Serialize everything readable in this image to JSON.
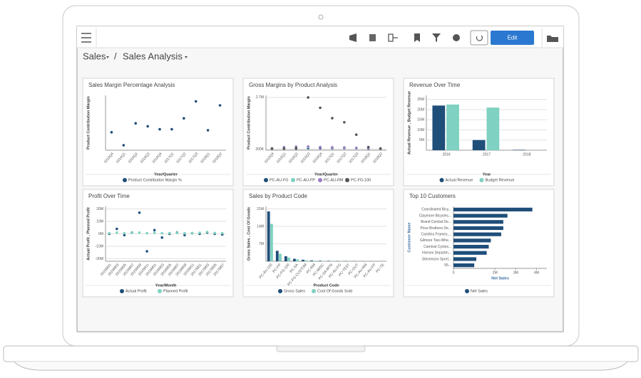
{
  "toolbar": {
    "edit": "Edit"
  },
  "breadcrumb": {
    "items": [
      "Sales",
      "Sales Analysis"
    ],
    "separator": "/"
  },
  "panels": [
    {
      "title": "Sales Margin Percentage Analysis",
      "chart": {
        "type": "line",
        "y_label": "Product Contribution Margin",
        "x_label": "Year/Quarter",
        "categories": [
          "2015Q4",
          "2016Q1",
          "2016Q2",
          "2016Q3",
          "2016Q4",
          "2017Q1",
          "2017Q2",
          "2017Q3",
          "2018Q1",
          "2018Q2"
        ],
        "ylim": [
          15,
          70
        ],
        "series": [
          {
            "name": "Product Contribution Margin %",
            "color": "#1f4e79",
            "values": [
              33,
              20,
              42,
              39,
              36,
              36,
              47,
              64,
              35,
              60
            ]
          }
        ]
      }
    },
    {
      "title": "Gross Margins by Product Analysis",
      "chart": {
        "type": "line",
        "y_label": "Product Contribution Margin",
        "x_label": "Year/Quarter",
        "grid": true,
        "categories": [
          "2015Q4",
          "2016Q1",
          "2016Q2",
          "2016Q3",
          "2016Q4",
          "2017Q1",
          "2017Q2",
          "2017Q3",
          "2018Q1",
          "2018Q2"
        ],
        "ylim": [
          150000,
          2800000
        ],
        "yticks": [
          {
            "value": 200000,
            "label": "200K"
          },
          {
            "value": 2700000,
            "label": "2.7M"
          }
        ],
        "series": [
          {
            "name": "PC-AU-FG",
            "color": "#1f4e79",
            "values": [
              230000,
              230000,
              230000,
              250000,
              250000,
              250000,
              250000,
              250000,
              230000,
              230000
            ]
          },
          {
            "name": "PC-AU-FP",
            "color": "#7fd1c1",
            "values": [
              230000,
              240000,
              260000,
              300000,
              300000,
              280000,
              270000,
              260000,
              240000,
              230000
            ]
          },
          {
            "name": "PC-AU-RM",
            "color": "#9b7cc4",
            "values": [
              230000,
              300000,
              320000,
              330000,
              300000,
              290000,
              280000,
              260000,
              240000,
              230000
            ]
          },
          {
            "name": "PC-FG-100",
            "color": "#555555",
            "values": [
              230000,
              230000,
              250000,
              2700000,
              2200000,
              1700000,
              1500000,
              900000,
              300000,
              230000
            ]
          }
        ]
      }
    },
    {
      "title": "Revenue Over Time",
      "chart": {
        "type": "bar",
        "y_label": "Actual Revenue , Budget Revenue",
        "x_label": "Year",
        "grid": true,
        "categories": [
          "2016",
          "2017",
          "2018"
        ],
        "ylim": [
          0,
          27000000
        ],
        "yticks": [
          {
            "value": 5000000,
            "label": "5M"
          },
          {
            "value": 10000000,
            "label": "10M"
          },
          {
            "value": 15000000,
            "label": "15M"
          },
          {
            "value": 20000000,
            "label": "20M"
          },
          {
            "value": 25000000,
            "label": "25M"
          }
        ],
        "series": [
          {
            "name": "Actual Revenue",
            "color": "#1f4e79",
            "values": [
              22000000,
              5000000,
              200000
            ]
          },
          {
            "name": "Budget Revenue",
            "color": "#7fd1c1",
            "values": [
              22500000,
              21000000,
              0
            ]
          }
        ]
      }
    },
    {
      "title": "Profit Over Time",
      "chart": {
        "type": "line",
        "y_label": "Actual Profit , Planned Profit",
        "x_label": "Year/Month",
        "grid": true,
        "categories": [
          "2015M01",
          "2015M03",
          "2015M05",
          "2015M07",
          "2015M09",
          "2015M11",
          "2016M01",
          "2016M03",
          "2016M05",
          "2016M07",
          "2016M09",
          "2016M11",
          "2017M01",
          "2017M03",
          "2017M05",
          "2017M07"
        ],
        "ylim": [
          -22000000,
          22000000
        ],
        "yticks": [
          {
            "value": -20000000,
            "label": "-20M"
          },
          {
            "value": -10000000,
            "label": "-10M"
          },
          {
            "value": 0,
            "label": "0M"
          },
          {
            "value": 10000000,
            "label": "10M"
          },
          {
            "value": 20000000,
            "label": "20M"
          }
        ],
        "series": [
          {
            "name": "Actual Profit",
            "color": "#1f4e79",
            "values": [
              0,
              4000000,
              -1000000,
              1000000,
              17000000,
              -14000000,
              3000000,
              -3000000,
              0,
              1000000,
              -1000000,
              500000,
              0,
              1000000,
              0,
              -500000
            ]
          },
          {
            "name": "Planned Profit",
            "color": "#7fd1c1",
            "values": [
              500000,
              1000000,
              500000,
              800000,
              1000000,
              500000,
              800000,
              500000,
              600000,
              700000,
              500000,
              600000,
              800000,
              1500000,
              700000,
              500000
            ]
          }
        ]
      }
    },
    {
      "title": "Sales by Product Code",
      "chart": {
        "type": "bar",
        "y_label": "Gross Sales , Cost Of Goods",
        "x_label": "Product Code",
        "grid": true,
        "categories": [
          "PC-AU-100",
          "PC-FP",
          "PC-FG-100",
          "PC-SA",
          "PC-FG-CUSTOM",
          "PC-RM",
          "PC-MISC",
          "PC-SA-MTN",
          "PC-AU-FG",
          "PC-TEST",
          "PC-OUT",
          "PC-AU-RM",
          "PC-AU-FP",
          "PC-TE"
        ],
        "ylim": [
          0,
          22000000
        ],
        "yticks": [
          {
            "value": 7000000,
            "label": "7M"
          },
          {
            "value": 14000000,
            "label": "14M"
          },
          {
            "value": 21000000,
            "label": "21M"
          }
        ],
        "series": [
          {
            "name": "Gross Sales",
            "color": "#1f4e79",
            "values": [
              20000000,
              4200000,
              2000000,
              1000000,
              600000,
              300000,
              200000,
              150000,
              100000,
              80000,
              60000,
              40000,
              30000,
              20000
            ]
          },
          {
            "name": "Cost Of Goods Sold",
            "color": "#7fd1c1",
            "values": [
              15000000,
              3000000,
              1500000,
              800000,
              400000,
              200000,
              150000,
              100000,
              70000,
              50000,
              40000,
              30000,
              20000,
              10000
            ]
          }
        ]
      }
    },
    {
      "title": "Top 10 Customers",
      "chart": {
        "type": "hbar",
        "y_label": "Customer Name",
        "x_label": "Net Sales",
        "categories": [
          "Coordinated Bicy...",
          "Claymore Bicycles...",
          "Brand Central De...",
          "Price Brothers De...",
          "Carolina Frames,...",
          "Gilmore Two-Whe...",
          "Carnival Cycles...",
          "Hornes Departm...",
          "Stevenson Sport...",
          "55..."
        ],
        "xlim": [
          0,
          4500000
        ],
        "xticks": [
          0,
          {
            "value": 2000000,
            "label": "2M"
          },
          {
            "value": 3000000,
            "label": "3M"
          },
          {
            "value": 4000000,
            "label": "4M"
          }
        ],
        "series": [
          {
            "name": "Net Sales",
            "color": "#1f4e79",
            "values": [
              3800000,
              2600000,
              2400000,
              2400000,
              2300000,
              1800000,
              1700000,
              1600000,
              1100000,
              1000000
            ]
          }
        ]
      }
    }
  ]
}
